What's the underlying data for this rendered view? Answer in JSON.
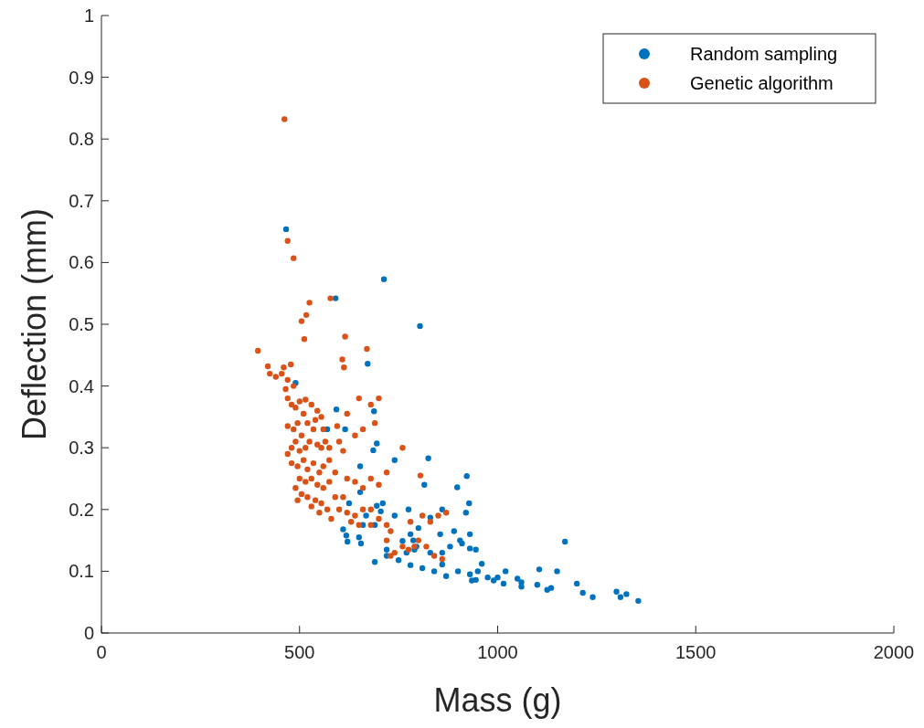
{
  "chart_data": {
    "type": "scatter",
    "xlabel": "Mass (g)",
    "ylabel": "Deflection (mm)",
    "xlim": [
      0,
      2000
    ],
    "ylim": [
      0,
      1
    ],
    "xticks": [
      0,
      500,
      1000,
      1500,
      2000
    ],
    "yticks": [
      0,
      0.1,
      0.2,
      0.3,
      0.4,
      0.5,
      0.6,
      0.7,
      0.8,
      0.9,
      1
    ],
    "grid": false,
    "legend": "top right",
    "marker": "circle",
    "series": [
      {
        "name": "Random sampling",
        "color": "#0072bd",
        "x": [
          466,
          591,
          713,
          804,
          490,
          672,
          593,
          688,
          570,
          615,
          695,
          686,
          653,
          740,
          825,
          922,
          898,
          928,
          920,
          860,
          815,
          775,
          710,
          705,
          653,
          668,
          695,
          625,
          610,
          618,
          621,
          660,
          690,
          655,
          740,
          780,
          787,
          800,
          795,
          830,
          855,
          890,
          905,
          910,
          930,
          930,
          945,
          880,
          860,
          830,
          790,
          690,
          720,
          750,
          770,
          780,
          810,
          840,
          860,
          870,
          900,
          930,
          935,
          950,
          945,
          960,
          975,
          990,
          1000,
          1015,
          1020,
          1050,
          1060,
          1060,
          1100,
          1105,
          1125,
          1135,
          1150,
          1170,
          1200,
          1215,
          1240,
          1300,
          1310,
          1325,
          1355,
          720,
          760,
          650
        ],
        "values": [
          0.654,
          0.542,
          0.573,
          0.497,
          0.405,
          0.436,
          0.362,
          0.359,
          0.33,
          0.33,
          0.307,
          0.296,
          0.27,
          0.28,
          0.283,
          0.254,
          0.236,
          0.21,
          0.195,
          0.2,
          0.24,
          0.2,
          0.21,
          0.197,
          0.228,
          0.19,
          0.206,
          0.21,
          0.168,
          0.158,
          0.148,
          0.175,
          0.175,
          0.145,
          0.19,
          0.16,
          0.15,
          0.17,
          0.14,
          0.187,
          0.16,
          0.165,
          0.15,
          0.145,
          0.16,
          0.137,
          0.135,
          0.14,
          0.13,
          0.13,
          0.135,
          0.115,
          0.125,
          0.118,
          0.13,
          0.11,
          0.105,
          0.1,
          0.111,
          0.092,
          0.1,
          0.095,
          0.085,
          0.1,
          0.086,
          0.112,
          0.09,
          0.085,
          0.09,
          0.08,
          0.1,
          0.088,
          0.075,
          0.082,
          0.078,
          0.103,
          0.07,
          0.073,
          0.1,
          0.148,
          0.08,
          0.065,
          0.058,
          0.067,
          0.058,
          0.063,
          0.052,
          0.135,
          0.149,
          0.155
        ]
      },
      {
        "name": "Genetic algorithm",
        "color": "#d95319",
        "x": [
          462,
          470,
          485,
          395,
          525,
          517,
          505,
          512,
          578,
          615,
          670,
          608,
          612,
          420,
          425,
          440,
          455,
          460,
          478,
          470,
          485,
          465,
          470,
          480,
          490,
          500,
          515,
          530,
          545,
          555,
          510,
          495,
          485,
          470,
          520,
          535,
          540,
          560,
          505,
          490,
          480,
          470,
          500,
          515,
          525,
          545,
          555,
          565,
          575,
          600,
          610,
          650,
          700,
          680,
          620,
          595,
          660,
          690,
          640,
          480,
          495,
          510,
          520,
          535,
          550,
          560,
          575,
          590,
          500,
          515,
          530,
          545,
          560,
          575,
          490,
          505,
          520,
          540,
          555,
          570,
          590,
          610,
          620,
          640,
          660,
          680,
          700,
          720,
          760,
          805,
          495,
          530,
          550,
          580,
          600,
          620,
          640,
          660,
          680,
          700,
          630,
          650,
          680,
          720,
          730,
          780,
          810,
          830,
          850,
          870,
          740,
          760,
          775,
          790,
          800,
          820,
          840,
          860,
          720,
          730
        ],
        "values": [
          0.832,
          0.635,
          0.607,
          0.457,
          0.535,
          0.515,
          0.505,
          0.476,
          0.542,
          0.48,
          0.46,
          0.443,
          0.43,
          0.432,
          0.42,
          0.415,
          0.42,
          0.43,
          0.435,
          0.41,
          0.4,
          0.395,
          0.38,
          0.37,
          0.365,
          0.375,
          0.378,
          0.37,
          0.36,
          0.35,
          0.355,
          0.34,
          0.33,
          0.335,
          0.34,
          0.33,
          0.345,
          0.33,
          0.32,
          0.31,
          0.3,
          0.29,
          0.295,
          0.3,
          0.31,
          0.305,
          0.3,
          0.31,
          0.3,
          0.31,
          0.295,
          0.38,
          0.38,
          0.37,
          0.355,
          0.335,
          0.33,
          0.34,
          0.32,
          0.275,
          0.27,
          0.28,
          0.265,
          0.275,
          0.26,
          0.27,
          0.28,
          0.26,
          0.25,
          0.245,
          0.25,
          0.24,
          0.235,
          0.245,
          0.235,
          0.225,
          0.22,
          0.215,
          0.21,
          0.2,
          0.22,
          0.22,
          0.25,
          0.245,
          0.235,
          0.25,
          0.24,
          0.26,
          0.3,
          0.255,
          0.215,
          0.205,
          0.195,
          0.185,
          0.2,
          0.195,
          0.19,
          0.2,
          0.2,
          0.185,
          0.18,
          0.175,
          0.175,
          0.175,
          0.165,
          0.18,
          0.19,
          0.18,
          0.19,
          0.195,
          0.13,
          0.14,
          0.135,
          0.14,
          0.15,
          0.14,
          0.125,
          0.12,
          0.15,
          0.125
        ]
      }
    ]
  }
}
